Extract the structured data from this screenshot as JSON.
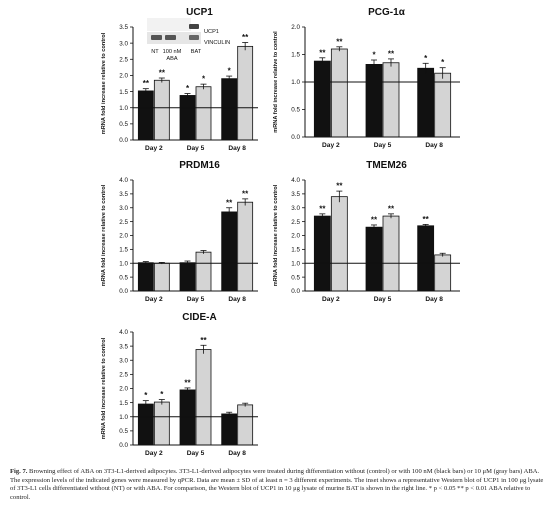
{
  "colors": {
    "control": "#111111",
    "aba_100nM": "#111111",
    "aba_10uM": "#d4d4d4",
    "axis": "#111111"
  },
  "ylabel": "mRNA fold increase relative to control",
  "inset": {
    "blot_labels": [
      "UCP1",
      "VINCULIN"
    ],
    "lane_labels": [
      "NT",
      "100 nM",
      "ABA",
      "BAT"
    ]
  },
  "chart_data": [
    {
      "type": "bar",
      "title": "UCP1",
      "categories": [
        "Day 2",
        "Day 5",
        "Day 8"
      ],
      "ylim": [
        0,
        3.5
      ],
      "yticks": [
        0,
        0.5,
        1.0,
        1.5,
        2.0,
        2.5,
        3.0,
        3.5
      ],
      "control_line": 1.0,
      "series": [
        {
          "values": [
            1.52,
            1.38,
            1.9
          ],
          "errors": [
            0.07,
            0.06,
            0.08
          ],
          "sig": [
            "**",
            "*",
            "*"
          ]
        },
        {
          "values": [
            1.85,
            1.65,
            2.9
          ],
          "errors": [
            0.07,
            0.08,
            0.12
          ],
          "sig": [
            "**",
            "*",
            "**"
          ]
        }
      ]
    },
    {
      "type": "bar",
      "title": "PCG-1α",
      "categories": [
        "Day 2",
        "Day 5",
        "Day 8"
      ],
      "ylim": [
        0,
        2.0
      ],
      "yticks": [
        0,
        0.5,
        1.0,
        1.5,
        2.0
      ],
      "control_line": 1.0,
      "series": [
        {
          "values": [
            1.38,
            1.32,
            1.25
          ],
          "errors": [
            0.06,
            0.08,
            0.09
          ],
          "sig": [
            "**",
            "*",
            "*"
          ]
        },
        {
          "values": [
            1.6,
            1.35,
            1.16
          ],
          "errors": [
            0.04,
            0.07,
            0.1
          ],
          "sig": [
            "**",
            "**",
            "*"
          ]
        }
      ]
    },
    {
      "type": "bar",
      "title": "PRDM16",
      "categories": [
        "Day 2",
        "Day 5",
        "Day 8"
      ],
      "ylim": [
        0,
        4.0
      ],
      "yticks": [
        0,
        0.5,
        1.0,
        1.5,
        2.0,
        2.5,
        3.0,
        3.5,
        4.0
      ],
      "control_line": 1.0,
      "series": [
        {
          "values": [
            1.02,
            1.02,
            2.85
          ],
          "errors": [
            0.04,
            0.06,
            0.15
          ],
          "sig": [
            "",
            "",
            "**"
          ]
        },
        {
          "values": [
            1.0,
            1.4,
            3.2
          ],
          "errors": [
            0.03,
            0.06,
            0.12
          ],
          "sig": [
            "",
            "",
            "**"
          ]
        }
      ]
    },
    {
      "type": "bar",
      "title": "TMEM26",
      "categories": [
        "Day 2",
        "Day 5",
        "Day 8"
      ],
      "ylim": [
        0,
        4.0
      ],
      "yticks": [
        0,
        0.5,
        1.0,
        1.5,
        2.0,
        2.5,
        3.0,
        3.5,
        4.0
      ],
      "control_line": 1.0,
      "series": [
        {
          "values": [
            2.7,
            2.3,
            2.35
          ],
          "errors": [
            0.08,
            0.08,
            0.05
          ],
          "sig": [
            "**",
            "**",
            "**"
          ]
        },
        {
          "values": [
            3.4,
            2.7,
            1.3
          ],
          "errors": [
            0.2,
            0.08,
            0.06
          ],
          "sig": [
            "**",
            "**",
            ""
          ]
        }
      ]
    },
    {
      "type": "bar",
      "title": "CIDE-A",
      "categories": [
        "Day 2",
        "Day 5",
        "Day 8"
      ],
      "ylim": [
        0,
        4.0
      ],
      "yticks": [
        0,
        0.5,
        1.0,
        1.5,
        2.0,
        2.5,
        3.0,
        3.5,
        4.0
      ],
      "control_line": 1.0,
      "series": [
        {
          "values": [
            1.45,
            1.95,
            1.1
          ],
          "errors": [
            0.12,
            0.07,
            0.06
          ],
          "sig": [
            "*",
            "**",
            ""
          ]
        },
        {
          "values": [
            1.52,
            3.38,
            1.42
          ],
          "errors": [
            0.09,
            0.15,
            0.06
          ],
          "sig": [
            "*",
            "**",
            ""
          ]
        }
      ]
    }
  ],
  "caption": {
    "lead": "Fig. 7.",
    "text": " Browning effect of ABA on 3T3-L1-derived adipocytes. 3T3-L1-derived adipocytes were treated during differentiation without (control) or with 100 nM (black bars) or 10 μM (gray bars) ABA. The expression levels of the indicated genes were measured by qPCR. Data are mean ± SD of at least n = 3 different experiments. The inset shows a representative Western blot of UCP1 in 100 μg lysate of 3T3-L1 cells differentiated without (NT) or with ABA. For comparison, the Western blot of UCP1 in 10 μg lysate of murine BAT is shown in the right line. * p < 0.05 ** p < 0.01 ABA relative to control."
  }
}
